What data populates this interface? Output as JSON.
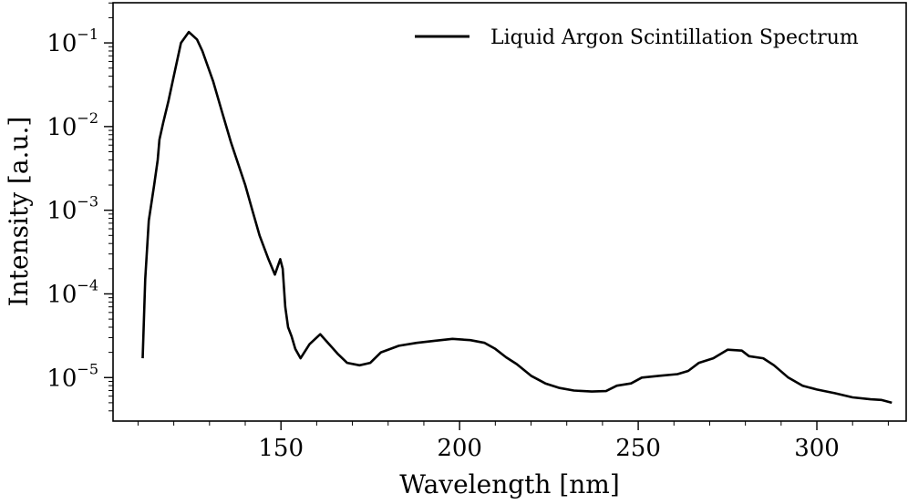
{
  "chart_data": {
    "type": "line",
    "title": "",
    "xlabel": "Wavelength [nm]",
    "ylabel": "Intensity [a.u.]",
    "xlim": [
      103,
      325
    ],
    "ylim_log10": [
      -5.52,
      -0.52
    ],
    "yscale": "log",
    "grid": false,
    "legend_position": "top-right",
    "x_ticks": [
      {
        "value": 150,
        "label": "150"
      },
      {
        "value": 200,
        "label": "200"
      },
      {
        "value": 250,
        "label": "250"
      },
      {
        "value": 300,
        "label": "300"
      }
    ],
    "y_ticks": [
      {
        "exp": -5,
        "base": "10",
        "sup": "−5"
      },
      {
        "exp": -4,
        "base": "10",
        "sup": "−4"
      },
      {
        "exp": -3,
        "base": "10",
        "sup": "−3"
      },
      {
        "exp": -2,
        "base": "10",
        "sup": "−2"
      },
      {
        "exp": -1,
        "base": "10",
        "sup": "−1"
      }
    ],
    "series": [
      {
        "name": "Liquid Argon Scintillation Spectrum",
        "color": "#000000",
        "points": [
          [
            111.3,
            1.7e-05
          ],
          [
            112.0,
            0.00015
          ],
          [
            113.0,
            0.00075
          ],
          [
            114.5,
            0.002
          ],
          [
            115.5,
            0.004
          ],
          [
            116.0,
            0.007
          ],
          [
            117.0,
            0.011
          ],
          [
            118.5,
            0.02
          ],
          [
            120.0,
            0.04
          ],
          [
            122.0,
            0.1
          ],
          [
            124.2,
            0.135
          ],
          [
            126.5,
            0.11
          ],
          [
            128.0,
            0.08
          ],
          [
            131.0,
            0.035
          ],
          [
            133.5,
            0.015
          ],
          [
            136.0,
            0.0065
          ],
          [
            140.0,
            0.002
          ],
          [
            142.0,
            0.001
          ],
          [
            144.0,
            0.0005
          ],
          [
            146.5,
            0.00026
          ],
          [
            148.3,
            0.00017
          ],
          [
            149.8,
            0.00026
          ],
          [
            150.5,
            0.0002
          ],
          [
            151.2,
            7e-05
          ],
          [
            152.0,
            4e-05
          ],
          [
            153.0,
            3.1e-05
          ],
          [
            154.0,
            2.2e-05
          ],
          [
            155.5,
            1.7e-05
          ],
          [
            158.0,
            2.5e-05
          ],
          [
            161.0,
            3.3e-05
          ],
          [
            163.5,
            2.5e-05
          ],
          [
            166.0,
            1.9e-05
          ],
          [
            168.5,
            1.5e-05
          ],
          [
            172.0,
            1.4e-05
          ],
          [
            175.0,
            1.5e-05
          ],
          [
            178.0,
            2e-05
          ],
          [
            183.0,
            2.4e-05
          ],
          [
            188.0,
            2.6e-05
          ],
          [
            193.0,
            2.75e-05
          ],
          [
            198.0,
            2.9e-05
          ],
          [
            203.0,
            2.8e-05
          ],
          [
            207.0,
            2.6e-05
          ],
          [
            210.0,
            2.2e-05
          ],
          [
            213.0,
            1.75e-05
          ],
          [
            216.0,
            1.45e-05
          ],
          [
            220.0,
            1.05e-05
          ],
          [
            224.0,
            8.5e-06
          ],
          [
            228.0,
            7.5e-06
          ],
          [
            232.0,
            7e-06
          ],
          [
            237.0,
            6.8e-06
          ],
          [
            241.0,
            6.9e-06
          ],
          [
            244.0,
            8e-06
          ],
          [
            248.0,
            8.5e-06
          ],
          [
            251.0,
            1e-05
          ],
          [
            256.0,
            1.05e-05
          ],
          [
            261.0,
            1.1e-05
          ],
          [
            264.0,
            1.2e-05
          ],
          [
            267.0,
            1.5e-05
          ],
          [
            271.0,
            1.7e-05
          ],
          [
            275.0,
            2.15e-05
          ],
          [
            279.0,
            2.1e-05
          ],
          [
            281.0,
            1.8e-05
          ],
          [
            285.0,
            1.7e-05
          ],
          [
            288.0,
            1.4e-05
          ],
          [
            292.0,
            1e-05
          ],
          [
            296.0,
            8e-06
          ],
          [
            300.0,
            7.2e-06
          ],
          [
            305.0,
            6.5e-06
          ],
          [
            310.0,
            5.8e-06
          ],
          [
            315.0,
            5.5e-06
          ],
          [
            318.0,
            5.4e-06
          ],
          [
            321.0,
            5e-06
          ]
        ]
      }
    ]
  }
}
